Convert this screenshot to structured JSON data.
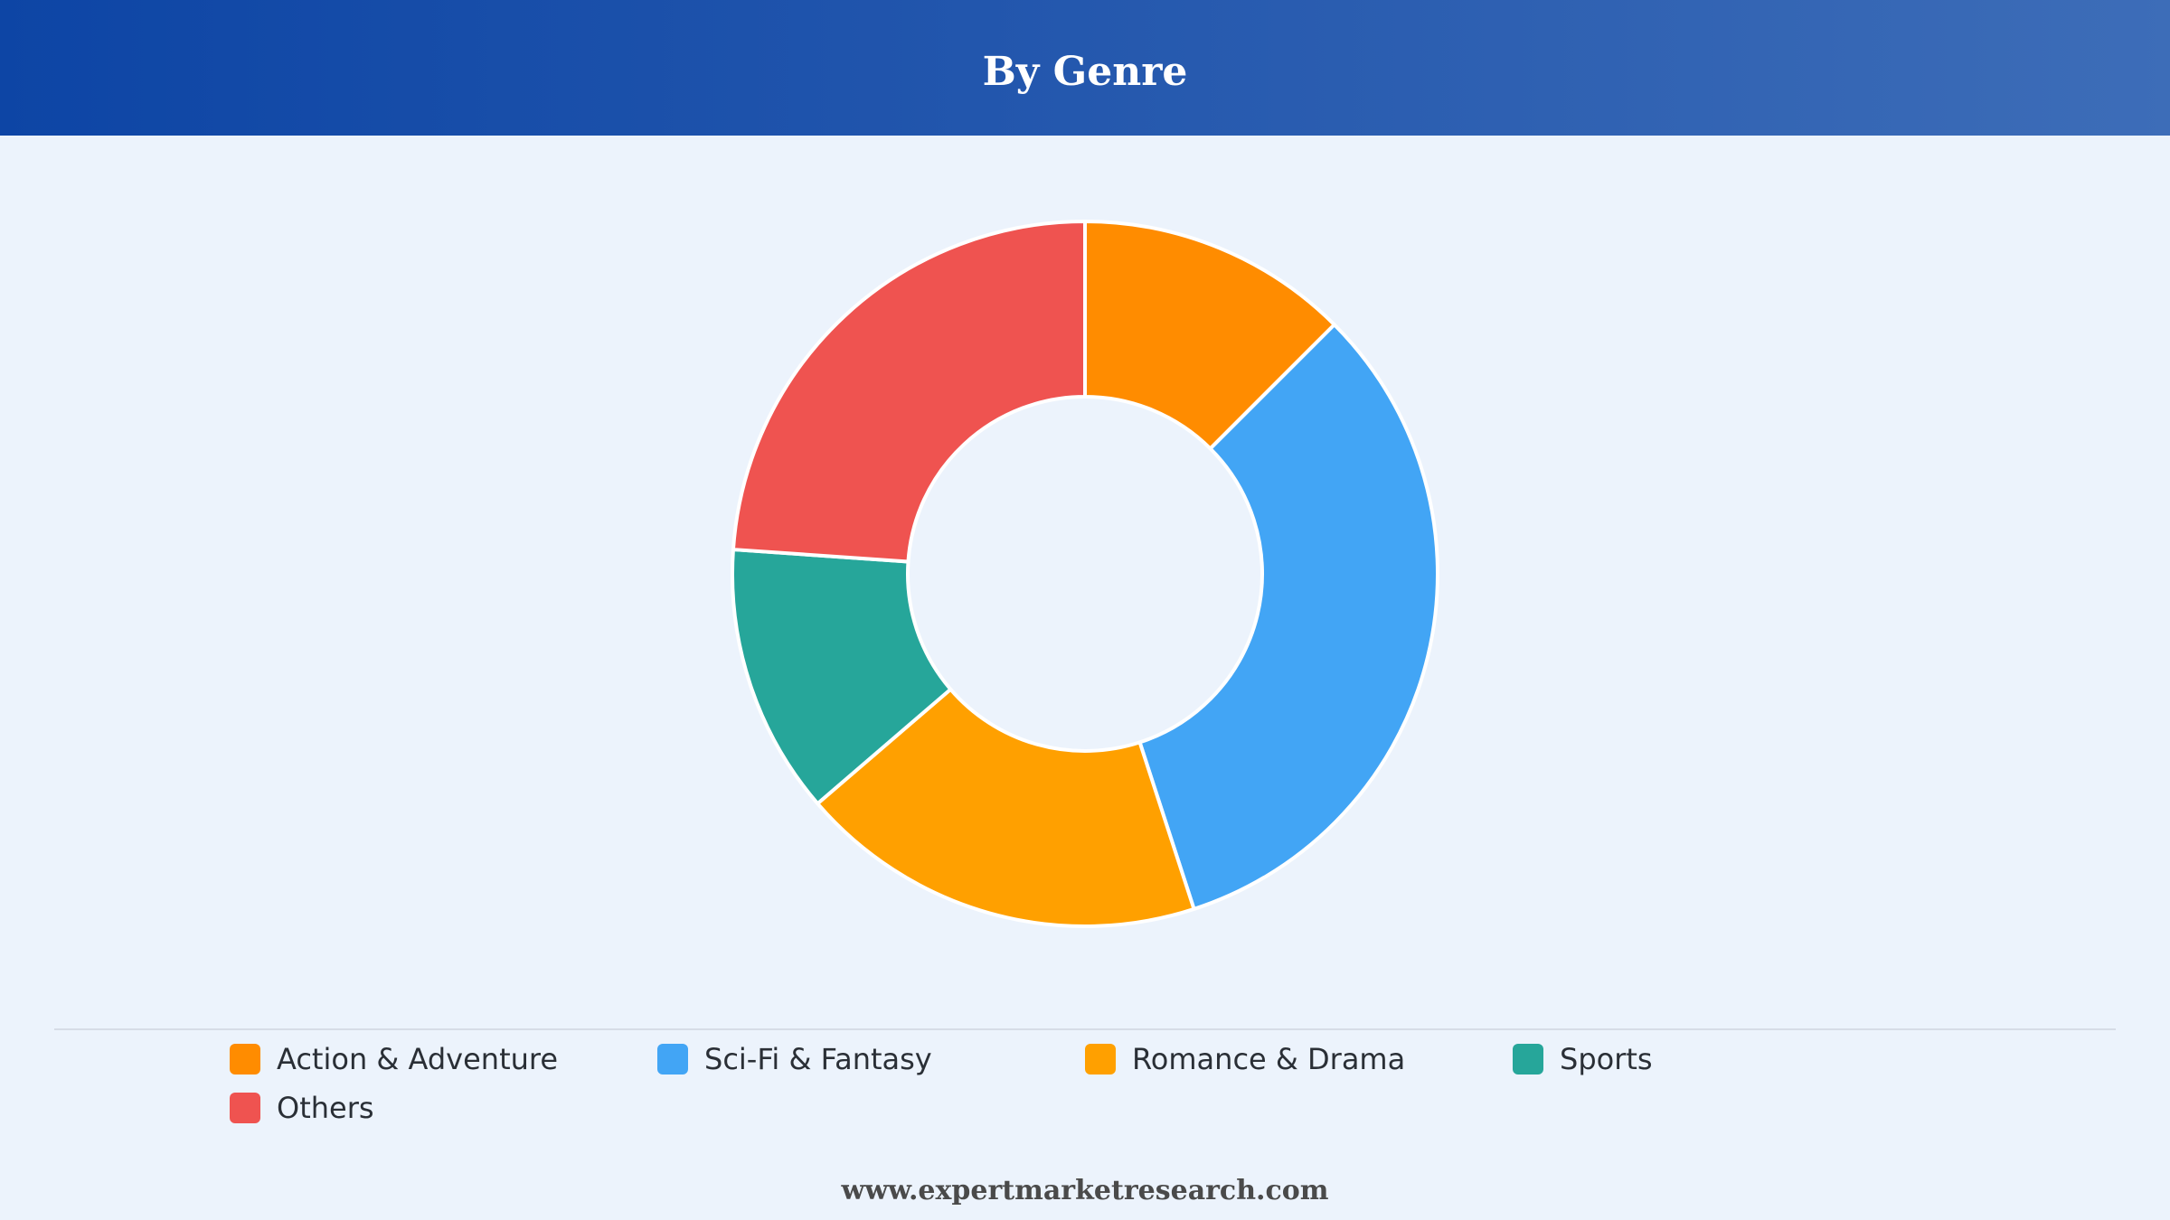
{
  "header": {
    "title": "By Genre"
  },
  "chart_data": {
    "type": "pie",
    "donut": true,
    "categories": [
      "Action & Adventure",
      "Sci-Fi & Fantasy",
      "Romance & Drama",
      "Sports",
      "Others"
    ],
    "values": [
      12.5,
      32.5,
      18.7,
      12.4,
      23.9
    ],
    "colors": [
      "#ff8c00",
      "#42a5f5",
      "#ffa000",
      "#26a69a",
      "#ef5350"
    ],
    "legend_position": "bottom"
  },
  "legend": {
    "items": [
      {
        "label": "Action & Adventure",
        "color": "#ff8c00"
      },
      {
        "label": "Sci-Fi & Fantasy",
        "color": "#42a5f5"
      },
      {
        "label": "Romance & Drama",
        "color": "#ffa000"
      },
      {
        "label": "Sports",
        "color": "#26a69a"
      },
      {
        "label": "Others",
        "color": "#ef5350"
      }
    ]
  },
  "footer": {
    "text": "www.expertmarketresearch.com"
  }
}
